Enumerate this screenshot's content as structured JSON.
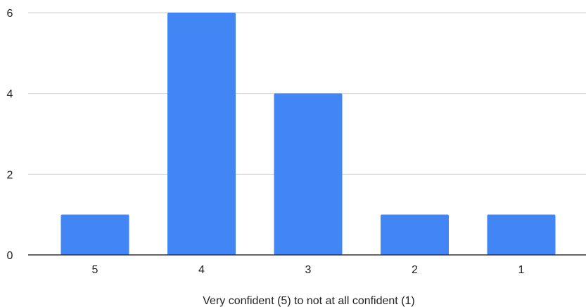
{
  "chart_data": {
    "type": "bar",
    "categories": [
      "5",
      "4",
      "3",
      "2",
      "1"
    ],
    "values": [
      1,
      6,
      4,
      1,
      1
    ],
    "title": "",
    "xlabel": "Very confident (5) to not at all confident (1)",
    "ylabel": "",
    "ylim": [
      0,
      6
    ],
    "yticks": [
      0,
      2,
      4,
      6
    ],
    "grid": true,
    "bar_color": "#4285f4",
    "grid_color": "#cccccc",
    "axis_color": "#333333"
  }
}
